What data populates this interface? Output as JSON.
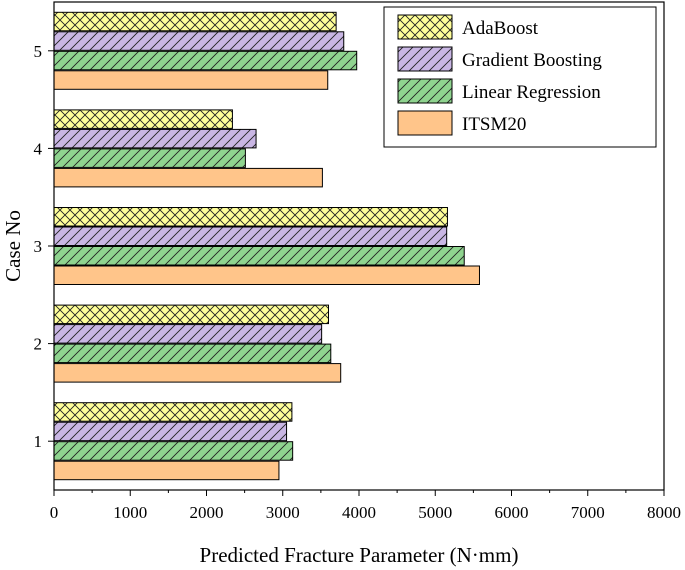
{
  "chart_data": {
    "type": "bar",
    "orientation": "horizontal",
    "title": "",
    "xlabel": "Predicted Fracture Parameter (N·mm)",
    "ylabel": "Case No",
    "xlim": [
      0,
      8000
    ],
    "x_ticks": [
      0,
      1000,
      2000,
      3000,
      4000,
      5000,
      6000,
      7000,
      8000
    ],
    "categories": [
      "1",
      "2",
      "3",
      "4",
      "5"
    ],
    "legend_position": "top-right",
    "series": [
      {
        "name": "AdaBoost",
        "color": "#ffff99",
        "pattern": "crosshatch",
        "values": [
          3120,
          3600,
          5160,
          2340,
          3700
        ]
      },
      {
        "name": "Gradient Boosting",
        "color": "#c9b6e4",
        "pattern": "diagonal",
        "values": [
          3050,
          3510,
          5150,
          2650,
          3800
        ]
      },
      {
        "name": "Linear Regression",
        "color": "#8fd48f",
        "pattern": "diagonal",
        "values": [
          3130,
          3630,
          5380,
          2510,
          3970
        ]
      },
      {
        "name": "ITSM20",
        "color": "#ffc58a",
        "pattern": "none",
        "values": [
          2950,
          3760,
          5580,
          3520,
          3590
        ]
      }
    ]
  }
}
